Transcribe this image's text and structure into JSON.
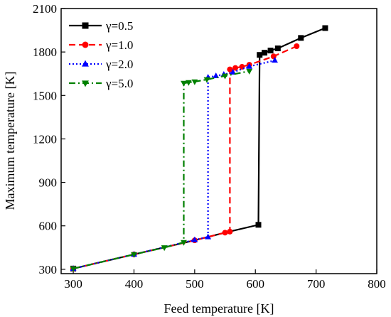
{
  "chart_data": {
    "type": "line",
    "title": "",
    "xlabel": "Feed temperature [K]",
    "ylabel": "Maximum temperature [K]",
    "xlim": [
      280,
      800
    ],
    "ylim": [
      270,
      2100
    ],
    "x_ticks": [
      300,
      400,
      500,
      600,
      700,
      800
    ],
    "y_ticks": [
      300,
      600,
      900,
      1200,
      1500,
      1800,
      2100
    ],
    "x_tick_labels": [
      "300",
      "400",
      "500",
      "600",
      "700",
      "800"
    ],
    "y_tick_labels": [
      "300",
      "600",
      "900",
      "1200",
      "1500",
      "1800",
      "2100"
    ],
    "grid": false,
    "legend_position": "top-left",
    "series": [
      {
        "name": "γ=0.5",
        "color": "#000000",
        "marker": "square",
        "dash": "solid",
        "line": [
          [
            300,
            305
          ],
          [
            400,
            403
          ],
          [
            500,
            500
          ],
          [
            550,
            553
          ],
          [
            605,
            607
          ],
          [
            607,
            1780
          ],
          [
            615,
            1795
          ],
          [
            625,
            1810
          ],
          [
            637,
            1825
          ],
          [
            675,
            1897
          ],
          [
            715,
            1965
          ]
        ],
        "markers": [
          [
            300,
            305
          ],
          [
            605,
            607
          ],
          [
            607,
            1780
          ],
          [
            615,
            1795
          ],
          [
            625,
            1810
          ],
          [
            637,
            1825
          ],
          [
            675,
            1897
          ],
          [
            715,
            1965
          ]
        ]
      },
      {
        "name": "γ=1.0",
        "color": "#ff0000",
        "marker": "circle",
        "dash": "dash",
        "line": [
          [
            300,
            305
          ],
          [
            400,
            403
          ],
          [
            500,
            500
          ],
          [
            550,
            553
          ],
          [
            558,
            560
          ],
          [
            558,
            1680
          ],
          [
            567,
            1690
          ],
          [
            578,
            1698
          ],
          [
            590,
            1712
          ],
          [
            630,
            1770
          ],
          [
            668,
            1840
          ]
        ],
        "markers": [
          [
            300,
            305
          ],
          [
            400,
            403
          ],
          [
            500,
            500
          ],
          [
            550,
            553
          ],
          [
            558,
            560
          ],
          [
            558,
            1680
          ],
          [
            567,
            1690
          ],
          [
            578,
            1698
          ],
          [
            590,
            1712
          ],
          [
            630,
            1770
          ],
          [
            668,
            1840
          ]
        ]
      },
      {
        "name": "γ=2.0",
        "color": "#0000ff",
        "marker": "triangle-up",
        "dash": "dot",
        "line": [
          [
            300,
            305
          ],
          [
            400,
            403
          ],
          [
            500,
            503
          ],
          [
            522,
            523
          ],
          [
            522,
            1625
          ],
          [
            535,
            1635
          ],
          [
            548,
            1645
          ],
          [
            563,
            1660
          ],
          [
            590,
            1700
          ],
          [
            632,
            1742
          ]
        ],
        "markers": [
          [
            300,
            305
          ],
          [
            400,
            403
          ],
          [
            500,
            503
          ],
          [
            522,
            523
          ],
          [
            522,
            1625
          ],
          [
            535,
            1635
          ],
          [
            548,
            1645
          ],
          [
            563,
            1660
          ],
          [
            590,
            1700
          ],
          [
            632,
            1742
          ]
        ]
      },
      {
        "name": "γ=5.0",
        "color": "#008000",
        "marker": "triangle-down",
        "dash": "dashdot",
        "line": [
          [
            300,
            305
          ],
          [
            400,
            403
          ],
          [
            450,
            450
          ],
          [
            482,
            486
          ],
          [
            482,
            1585
          ],
          [
            490,
            1590
          ],
          [
            500,
            1595
          ],
          [
            520,
            1610
          ],
          [
            550,
            1635
          ],
          [
            590,
            1668
          ]
        ],
        "markers": [
          [
            300,
            305
          ],
          [
            400,
            403
          ],
          [
            450,
            450
          ],
          [
            482,
            486
          ],
          [
            482,
            1585
          ],
          [
            490,
            1590
          ],
          [
            500,
            1595
          ],
          [
            520,
            1610
          ],
          [
            550,
            1635
          ],
          [
            590,
            1668
          ]
        ]
      }
    ]
  }
}
